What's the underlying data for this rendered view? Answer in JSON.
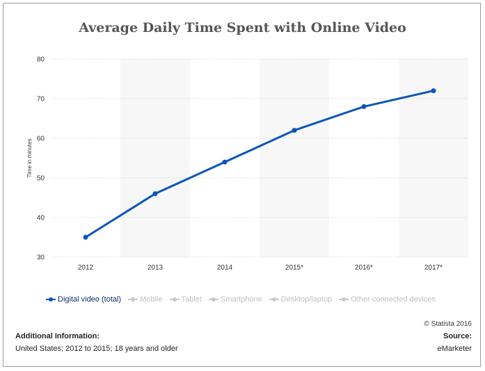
{
  "chart_data": {
    "type": "line",
    "title": "Average Daily Time Spent with Online Video",
    "ylabel": "Time in minutes",
    "xlabel": "",
    "categories": [
      "2012",
      "2013",
      "2014",
      "2015*",
      "2016*",
      "2017*"
    ],
    "ylim": [
      30,
      80
    ],
    "yticks": [
      30,
      40,
      50,
      60,
      70,
      80
    ],
    "grid": "horizontal dotted",
    "alternating_column_bands": true,
    "series": [
      {
        "name": "Digital video (total)",
        "values": [
          35,
          46,
          54,
          62,
          68,
          72
        ],
        "color": "#0a55b8",
        "visible": true
      }
    ],
    "legend": {
      "placement": "bottom",
      "items": [
        {
          "label": "Digital video (total)",
          "active": true
        },
        {
          "label": "Mobile",
          "active": false
        },
        {
          "label": "Tablet",
          "active": false
        },
        {
          "label": "Smartphone",
          "active": false
        },
        {
          "label": "Desktop/laptop",
          "active": false
        },
        {
          "label": "Other connected devices",
          "active": false
        }
      ]
    }
  },
  "colors": {
    "series_active": "#0a55b8",
    "legend_inactive": "#c8c8c8",
    "band": "#f7f7f7",
    "grid": "#cfcfcf"
  },
  "footer": {
    "copyright": "© Statista 2016",
    "additional_info_title": "Additional Information:",
    "additional_info_text": "United States; 2012 to 2015; 18 years and older",
    "source_title": "Source:",
    "source_text": "eMarketer"
  }
}
